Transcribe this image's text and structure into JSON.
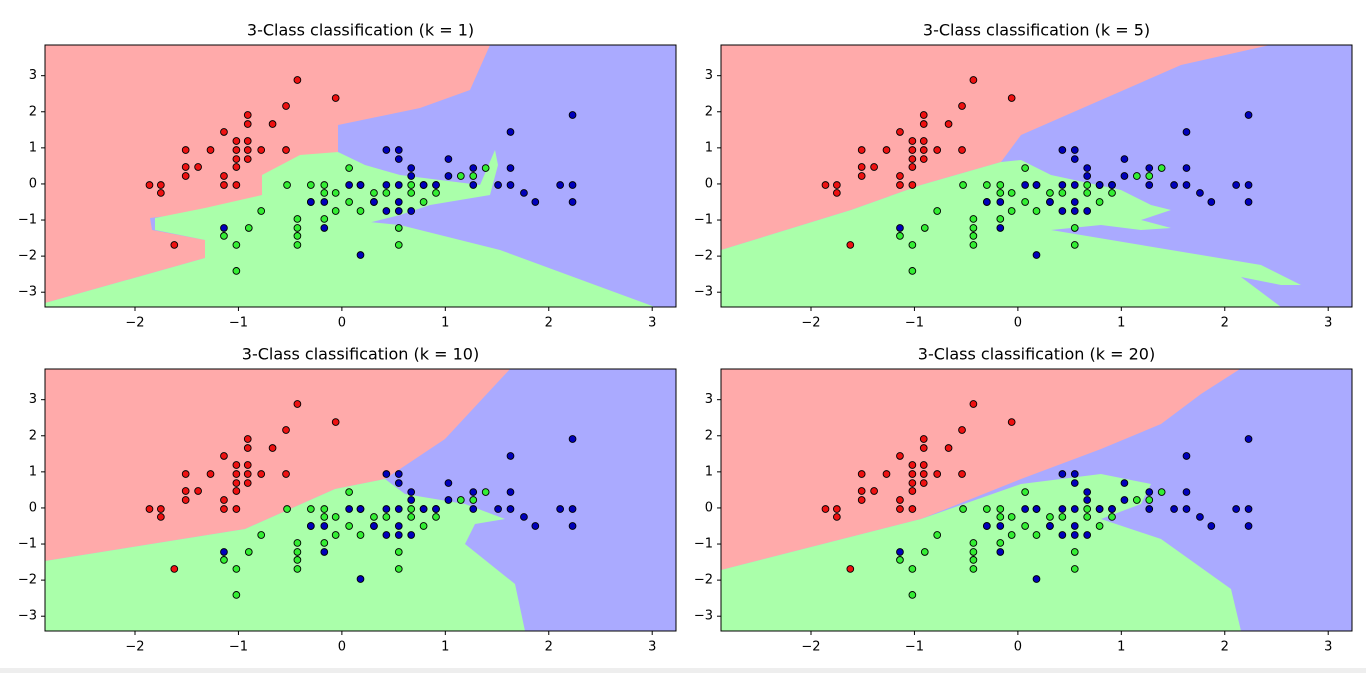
{
  "chart_data": [
    {
      "type": "scatter",
      "title": "3-Class classification (k = 1)",
      "xlim": [
        -2.87,
        3.23
      ],
      "ylim": [
        -3.41,
        3.85
      ],
      "xticks": [
        {
          "value": -2,
          "label": "−2"
        },
        {
          "value": -1,
          "label": "−1"
        },
        0,
        1,
        2,
        3
      ],
      "yticks": [
        {
          "value": -3,
          "label": "−3"
        },
        {
          "value": -2,
          "label": "−2"
        },
        {
          "value": -1,
          "label": "−1"
        },
        0,
        1,
        2,
        3
      ],
      "series": [
        {
          "color": "#ee1111",
          "x": [
            -0.43,
            -0.06,
            -0.54,
            -0.91,
            -0.91,
            -0.67,
            -1.14,
            -1.02,
            -0.91,
            -1.02,
            -0.91,
            -1.27,
            -1.51,
            -0.78,
            -0.54,
            -1.02,
            -0.91,
            -1.02,
            -1.51,
            -1.39,
            -1.51,
            -1.14,
            -1.86,
            -1.75,
            -1.14,
            -1.02,
            -1.75,
            -1.62
          ],
          "values": [
            2.88,
            2.38,
            2.16,
            1.91,
            1.66,
            1.66,
            1.44,
            1.19,
            1.19,
            0.94,
            0.94,
            0.94,
            0.94,
            0.94,
            0.94,
            0.69,
            0.69,
            0.47,
            0.47,
            0.47,
            0.22,
            0.22,
            -0.03,
            -0.03,
            -0.03,
            -0.03,
            -0.25,
            -1.69
          ]
        },
        {
          "color": "#33ee33",
          "x": [
            0.07,
            -0.53,
            -0.3,
            -0.17,
            0.18,
            0.67,
            0.79,
            0.91,
            -0.17,
            -0.06,
            0.31,
            0.43,
            0.67,
            0.91,
            -0.3,
            0.07,
            0.31,
            0.79,
            -0.78,
            -0.43,
            -0.17,
            -0.06,
            0.18,
            -0.43,
            -0.43,
            -0.43,
            0.55,
            0.55,
            -0.9,
            -1.14,
            -1.02,
            -1.02,
            1.15,
            1.39,
            1.27
          ],
          "values": [
            0.44,
            -0.03,
            -0.03,
            -0.03,
            -0.03,
            -0.03,
            -0.03,
            -0.03,
            -0.25,
            -0.25,
            -0.25,
            -0.25,
            -0.25,
            -0.25,
            -0.5,
            -0.5,
            -0.5,
            -0.5,
            -0.75,
            -0.97,
            -0.97,
            -0.75,
            -0.75,
            -1.22,
            -1.44,
            -1.69,
            -1.22,
            -1.69,
            -1.22,
            -1.44,
            -1.69,
            -2.41,
            0.22,
            0.44,
            0.22
          ]
        },
        {
          "color": "#0000bb",
          "x": [
            2.23,
            1.63,
            0.43,
            0.55,
            0.55,
            1.03,
            0.67,
            1.27,
            1.63,
            0.67,
            1.03,
            0.07,
            0.18,
            0.43,
            0.55,
            0.79,
            0.91,
            1.27,
            1.51,
            1.63,
            2.11,
            2.23,
            1.76,
            1.87,
            2.23,
            -0.3,
            -0.17,
            0.31,
            0.55,
            0.43,
            0.55,
            0.67,
            -1.14,
            -0.17,
            0.18
          ],
          "values": [
            1.91,
            1.44,
            0.94,
            0.94,
            0.69,
            0.69,
            0.44,
            0.44,
            0.44,
            0.22,
            0.22,
            -0.03,
            -0.03,
            -0.03,
            -0.03,
            -0.03,
            -0.03,
            -0.03,
            -0.03,
            -0.03,
            -0.03,
            -0.03,
            -0.25,
            -0.5,
            -0.5,
            -0.5,
            -0.5,
            -0.5,
            -0.5,
            -0.75,
            -0.75,
            -0.75,
            -1.22,
            -1.22,
            -1.97
          ]
        }
      ]
    },
    {
      "type": "scatter",
      "title": "3-Class classification (k = 5)",
      "xlim": [
        -2.87,
        3.23
      ],
      "ylim": [
        -3.41,
        3.85
      ],
      "xticks": [
        {
          "value": -2,
          "label": "−2"
        },
        {
          "value": -1,
          "label": "−1"
        },
        0,
        1,
        2,
        3
      ],
      "yticks": [
        {
          "value": -3,
          "label": "−3"
        },
        {
          "value": -2,
          "label": "−2"
        },
        {
          "value": -1,
          "label": "−1"
        },
        0,
        1,
        2,
        3
      ],
      "series": [
        {
          "color": "#ee1111",
          "x": [
            -0.43,
            -0.06,
            -0.54,
            -0.91,
            -0.91,
            -0.67,
            -1.14,
            -1.02,
            -0.91,
            -1.02,
            -0.91,
            -1.27,
            -1.51,
            -0.78,
            -0.54,
            -1.02,
            -0.91,
            -1.02,
            -1.51,
            -1.39,
            -1.51,
            -1.14,
            -1.86,
            -1.75,
            -1.14,
            -1.02,
            -1.75,
            -1.62
          ],
          "values": [
            2.88,
            2.38,
            2.16,
            1.91,
            1.66,
            1.66,
            1.44,
            1.19,
            1.19,
            0.94,
            0.94,
            0.94,
            0.94,
            0.94,
            0.94,
            0.69,
            0.69,
            0.47,
            0.47,
            0.47,
            0.22,
            0.22,
            -0.03,
            -0.03,
            -0.03,
            -0.03,
            -0.25,
            -1.69
          ]
        },
        {
          "color": "#33ee33",
          "x": [
            0.07,
            -0.53,
            -0.3,
            -0.17,
            0.18,
            0.67,
            0.79,
            0.91,
            -0.17,
            -0.06,
            0.31,
            0.43,
            0.67,
            0.91,
            -0.3,
            0.07,
            0.31,
            0.79,
            -0.78,
            -0.43,
            -0.17,
            -0.06,
            0.18,
            -0.43,
            -0.43,
            -0.43,
            0.55,
            0.55,
            -0.9,
            -1.14,
            -1.02,
            -1.02,
            1.15,
            1.39,
            1.27
          ],
          "values": [
            0.44,
            -0.03,
            -0.03,
            -0.03,
            -0.03,
            -0.03,
            -0.03,
            -0.03,
            -0.25,
            -0.25,
            -0.25,
            -0.25,
            -0.25,
            -0.25,
            -0.5,
            -0.5,
            -0.5,
            -0.5,
            -0.75,
            -0.97,
            -0.97,
            -0.75,
            -0.75,
            -1.22,
            -1.44,
            -1.69,
            -1.22,
            -1.69,
            -1.22,
            -1.44,
            -1.69,
            -2.41,
            0.22,
            0.44,
            0.22
          ]
        },
        {
          "color": "#0000bb",
          "x": [
            2.23,
            1.63,
            0.43,
            0.55,
            0.55,
            1.03,
            0.67,
            1.27,
            1.63,
            0.67,
            1.03,
            0.07,
            0.18,
            0.43,
            0.55,
            0.79,
            0.91,
            1.27,
            1.51,
            1.63,
            2.11,
            2.23,
            1.76,
            1.87,
            2.23,
            -0.3,
            -0.17,
            0.31,
            0.55,
            0.43,
            0.55,
            0.67,
            -1.14,
            -0.17,
            0.18
          ],
          "values": [
            1.91,
            1.44,
            0.94,
            0.94,
            0.69,
            0.69,
            0.44,
            0.44,
            0.44,
            0.22,
            0.22,
            -0.03,
            -0.03,
            -0.03,
            -0.03,
            -0.03,
            -0.03,
            -0.03,
            -0.03,
            -0.03,
            -0.03,
            -0.03,
            -0.25,
            -0.5,
            -0.5,
            -0.5,
            -0.5,
            -0.5,
            -0.5,
            -0.75,
            -0.75,
            -0.75,
            -1.22,
            -1.22,
            -1.97
          ]
        }
      ]
    },
    {
      "type": "scatter",
      "title": "3-Class classification (k = 10)",
      "xlim": [
        -2.87,
        3.23
      ],
      "ylim": [
        -3.41,
        3.85
      ],
      "xticks": [
        {
          "value": -2,
          "label": "−2"
        },
        {
          "value": -1,
          "label": "−1"
        },
        0,
        1,
        2,
        3
      ],
      "yticks": [
        {
          "value": -3,
          "label": "−3"
        },
        {
          "value": -2,
          "label": "−2"
        },
        {
          "value": -1,
          "label": "−1"
        },
        0,
        1,
        2,
        3
      ],
      "series": [
        {
          "color": "#ee1111",
          "x": [
            -0.43,
            -0.06,
            -0.54,
            -0.91,
            -0.91,
            -0.67,
            -1.14,
            -1.02,
            -0.91,
            -1.02,
            -0.91,
            -1.27,
            -1.51,
            -0.78,
            -0.54,
            -1.02,
            -0.91,
            -1.02,
            -1.51,
            -1.39,
            -1.51,
            -1.14,
            -1.86,
            -1.75,
            -1.14,
            -1.02,
            -1.75,
            -1.62
          ],
          "values": [
            2.88,
            2.38,
            2.16,
            1.91,
            1.66,
            1.66,
            1.44,
            1.19,
            1.19,
            0.94,
            0.94,
            0.94,
            0.94,
            0.94,
            0.94,
            0.69,
            0.69,
            0.47,
            0.47,
            0.47,
            0.22,
            0.22,
            -0.03,
            -0.03,
            -0.03,
            -0.03,
            -0.25,
            -1.69
          ]
        },
        {
          "color": "#33ee33",
          "x": [
            0.07,
            -0.53,
            -0.3,
            -0.17,
            0.18,
            0.67,
            0.79,
            0.91,
            -0.17,
            -0.06,
            0.31,
            0.43,
            0.67,
            0.91,
            -0.3,
            0.07,
            0.31,
            0.79,
            -0.78,
            -0.43,
            -0.17,
            -0.06,
            0.18,
            -0.43,
            -0.43,
            -0.43,
            0.55,
            0.55,
            -0.9,
            -1.14,
            -1.02,
            -1.02,
            1.15,
            1.39,
            1.27
          ],
          "values": [
            0.44,
            -0.03,
            -0.03,
            -0.03,
            -0.03,
            -0.03,
            -0.03,
            -0.03,
            -0.25,
            -0.25,
            -0.25,
            -0.25,
            -0.25,
            -0.25,
            -0.5,
            -0.5,
            -0.5,
            -0.5,
            -0.75,
            -0.97,
            -0.97,
            -0.75,
            -0.75,
            -1.22,
            -1.44,
            -1.69,
            -1.22,
            -1.69,
            -1.22,
            -1.44,
            -1.69,
            -2.41,
            0.22,
            0.44,
            0.22
          ]
        },
        {
          "color": "#0000bb",
          "x": [
            2.23,
            1.63,
            0.43,
            0.55,
            0.55,
            1.03,
            0.67,
            1.27,
            1.63,
            0.67,
            1.03,
            0.07,
            0.18,
            0.43,
            0.55,
            0.79,
            0.91,
            1.27,
            1.51,
            1.63,
            2.11,
            2.23,
            1.76,
            1.87,
            2.23,
            -0.3,
            -0.17,
            0.31,
            0.55,
            0.43,
            0.55,
            0.67,
            -1.14,
            -0.17,
            0.18
          ],
          "values": [
            1.91,
            1.44,
            0.94,
            0.94,
            0.69,
            0.69,
            0.44,
            0.44,
            0.44,
            0.22,
            0.22,
            -0.03,
            -0.03,
            -0.03,
            -0.03,
            -0.03,
            -0.03,
            -0.03,
            -0.03,
            -0.03,
            -0.03,
            -0.03,
            -0.25,
            -0.5,
            -0.5,
            -0.5,
            -0.5,
            -0.5,
            -0.5,
            -0.75,
            -0.75,
            -0.75,
            -1.22,
            -1.22,
            -1.97
          ]
        }
      ]
    },
    {
      "type": "scatter",
      "title": "3-Class classification (k = 20)",
      "xlim": [
        -2.87,
        3.23
      ],
      "ylim": [
        -3.41,
        3.85
      ],
      "xticks": [
        {
          "value": -2,
          "label": "−2"
        },
        {
          "value": -1,
          "label": "−1"
        },
        0,
        1,
        2,
        3
      ],
      "yticks": [
        {
          "value": -3,
          "label": "−3"
        },
        {
          "value": -2,
          "label": "−2"
        },
        {
          "value": -1,
          "label": "−1"
        },
        0,
        1,
        2,
        3
      ],
      "series": [
        {
          "color": "#ee1111",
          "x": [
            -0.43,
            -0.06,
            -0.54,
            -0.91,
            -0.91,
            -0.67,
            -1.14,
            -1.02,
            -0.91,
            -1.02,
            -0.91,
            -1.27,
            -1.51,
            -0.78,
            -0.54,
            -1.02,
            -0.91,
            -1.02,
            -1.51,
            -1.39,
            -1.51,
            -1.14,
            -1.86,
            -1.75,
            -1.14,
            -1.02,
            -1.75,
            -1.62
          ],
          "values": [
            2.88,
            2.38,
            2.16,
            1.91,
            1.66,
            1.66,
            1.44,
            1.19,
            1.19,
            0.94,
            0.94,
            0.94,
            0.94,
            0.94,
            0.94,
            0.69,
            0.69,
            0.47,
            0.47,
            0.47,
            0.22,
            0.22,
            -0.03,
            -0.03,
            -0.03,
            -0.03,
            -0.25,
            -1.69
          ]
        },
        {
          "color": "#33ee33",
          "x": [
            0.07,
            -0.53,
            -0.3,
            -0.17,
            0.18,
            0.67,
            0.79,
            0.91,
            -0.17,
            -0.06,
            0.31,
            0.43,
            0.67,
            0.91,
            -0.3,
            0.07,
            0.31,
            0.79,
            -0.78,
            -0.43,
            -0.17,
            -0.06,
            0.18,
            -0.43,
            -0.43,
            -0.43,
            0.55,
            0.55,
            -0.9,
            -1.14,
            -1.02,
            -1.02,
            1.15,
            1.39,
            1.27
          ],
          "values": [
            0.44,
            -0.03,
            -0.03,
            -0.03,
            -0.03,
            -0.03,
            -0.03,
            -0.03,
            -0.25,
            -0.25,
            -0.25,
            -0.25,
            -0.25,
            -0.25,
            -0.5,
            -0.5,
            -0.5,
            -0.5,
            -0.75,
            -0.97,
            -0.97,
            -0.75,
            -0.75,
            -1.22,
            -1.44,
            -1.69,
            -1.22,
            -1.69,
            -1.22,
            -1.44,
            -1.69,
            -2.41,
            0.22,
            0.44,
            0.22
          ]
        },
        {
          "color": "#0000bb",
          "x": [
            2.23,
            1.63,
            0.43,
            0.55,
            0.55,
            1.03,
            0.67,
            1.27,
            1.63,
            0.67,
            1.03,
            0.07,
            0.18,
            0.43,
            0.55,
            0.79,
            0.91,
            1.27,
            1.51,
            1.63,
            2.11,
            2.23,
            1.76,
            1.87,
            2.23,
            -0.3,
            -0.17,
            0.31,
            0.55,
            0.43,
            0.55,
            0.67,
            -1.14,
            -0.17,
            0.18
          ],
          "values": [
            1.91,
            1.44,
            0.94,
            0.94,
            0.69,
            0.69,
            0.44,
            0.44,
            0.44,
            0.22,
            0.22,
            -0.03,
            -0.03,
            -0.03,
            -0.03,
            -0.03,
            -0.03,
            -0.03,
            -0.03,
            -0.03,
            -0.03,
            -0.03,
            -0.25,
            -0.5,
            -0.5,
            -0.5,
            -0.5,
            -0.5,
            -0.5,
            -0.75,
            -0.75,
            -0.75,
            -1.22,
            -1.22,
            -1.97
          ]
        }
      ]
    }
  ]
}
